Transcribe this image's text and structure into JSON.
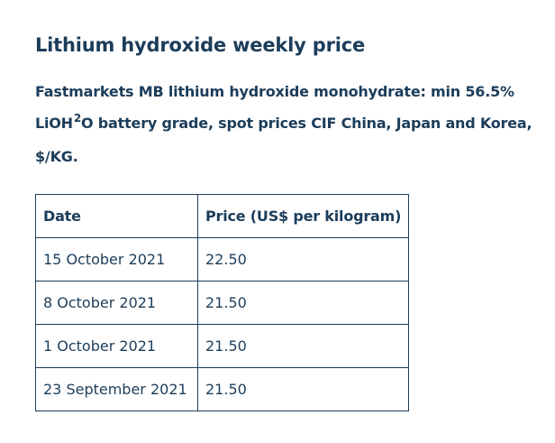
{
  "title": "Lithium hydroxide weekly price",
  "subtitle": {
    "line1": "Fastmarkets MB lithium hydroxide monohydrate: min 56.5%",
    "line2_prefix": "LiOH",
    "line2_sup": "2",
    "line2_suffix": "O battery grade, spot prices CIF China, Japan and Korea,",
    "line3": "$/KG."
  },
  "table": {
    "headers": [
      "Date",
      "Price (US$ per kilogram)"
    ],
    "rows": [
      {
        "date": "15 October 2021",
        "price": "22.50"
      },
      {
        "date": "8 October 2021",
        "price": "21.50"
      },
      {
        "date": "1 October 2021",
        "price": "21.50"
      },
      {
        "date": "23 September 2021",
        "price": "21.50"
      }
    ]
  },
  "colors": {
    "text": "#1c3d5a",
    "border": "#1c3d5a",
    "background": "#ffffff"
  }
}
